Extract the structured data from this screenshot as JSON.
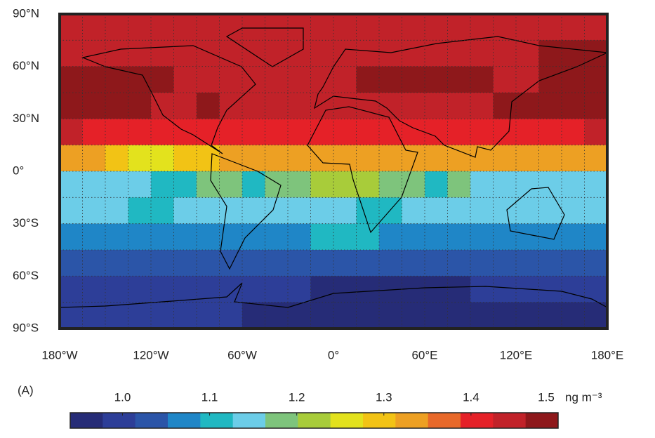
{
  "chart_data": {
    "type": "map",
    "panel_label": "(A)",
    "xlim": [
      -180,
      180
    ],
    "ylim": [
      -90,
      90
    ],
    "xticks": [
      {
        "value": -180,
        "label": "180°W"
      },
      {
        "value": -120,
        "label": "120°W"
      },
      {
        "value": -60,
        "label": "60°W"
      },
      {
        "value": 0,
        "label": "0°"
      },
      {
        "value": 60,
        "label": "60°E"
      },
      {
        "value": 120,
        "label": "120°E"
      },
      {
        "value": 180,
        "label": "180°E"
      }
    ],
    "yticks": [
      {
        "value": 90,
        "label": "90°N"
      },
      {
        "value": 60,
        "label": "60°N"
      },
      {
        "value": 30,
        "label": "30°N"
      },
      {
        "value": 0,
        "label": "0°"
      },
      {
        "value": -30,
        "label": "30°S"
      },
      {
        "value": -60,
        "label": "60°S"
      },
      {
        "value": -90,
        "label": "90°S"
      }
    ],
    "values": [
      [
        1.45,
        1.45,
        1.45,
        1.45,
        1.45,
        1.45,
        1.45,
        1.45,
        1.45,
        1.45,
        1.45,
        1.45,
        1.45,
        1.45,
        1.45,
        1.45,
        1.45,
        1.45,
        1.45,
        1.45,
        1.45,
        1.45,
        1.45,
        1.45
      ],
      [
        1.45,
        1.45,
        1.45,
        1.45,
        1.45,
        1.45,
        1.45,
        1.45,
        1.45,
        1.45,
        1.45,
        1.45,
        1.45,
        1.45,
        1.45,
        1.45,
        1.45,
        1.45,
        1.45,
        1.45,
        1.45,
        1.48,
        1.48,
        1.48
      ],
      [
        1.48,
        1.48,
        1.48,
        1.48,
        1.48,
        1.45,
        1.45,
        1.45,
        1.45,
        1.45,
        1.45,
        1.45,
        1.45,
        1.48,
        1.48,
        1.48,
        1.48,
        1.48,
        1.48,
        1.45,
        1.45,
        1.48,
        1.48,
        1.48
      ],
      [
        1.48,
        1.48,
        1.48,
        1.48,
        1.45,
        1.45,
        1.48,
        1.45,
        1.45,
        1.45,
        1.45,
        1.45,
        1.45,
        1.45,
        1.45,
        1.45,
        1.45,
        1.45,
        1.45,
        1.48,
        1.48,
        1.48,
        1.48,
        1.48
      ],
      [
        1.45,
        1.41,
        1.41,
        1.41,
        1.41,
        1.41,
        1.41,
        1.41,
        1.41,
        1.41,
        1.41,
        1.41,
        1.41,
        1.41,
        1.41,
        1.41,
        1.41,
        1.41,
        1.41,
        1.41,
        1.41,
        1.41,
        1.41,
        1.45
      ],
      [
        1.34,
        1.34,
        1.3,
        1.27,
        1.27,
        1.3,
        1.3,
        1.34,
        1.34,
        1.34,
        1.34,
        1.34,
        1.34,
        1.34,
        1.34,
        1.34,
        1.34,
        1.34,
        1.34,
        1.34,
        1.34,
        1.34,
        1.34,
        1.34
      ],
      [
        1.15,
        1.15,
        1.15,
        1.15,
        1.11,
        1.11,
        1.19,
        1.19,
        1.11,
        1.19,
        1.19,
        1.22,
        1.22,
        1.22,
        1.19,
        1.19,
        1.11,
        1.19,
        1.15,
        1.15,
        1.15,
        1.15,
        1.15,
        1.15
      ],
      [
        1.15,
        1.15,
        1.15,
        1.11,
        1.11,
        1.15,
        1.15,
        1.15,
        1.15,
        1.15,
        1.15,
        1.15,
        1.15,
        1.11,
        1.11,
        1.15,
        1.15,
        1.15,
        1.15,
        1.15,
        1.15,
        1.15,
        1.15,
        1.15
      ],
      [
        1.08,
        1.08,
        1.08,
        1.08,
        1.08,
        1.08,
        1.08,
        1.08,
        1.08,
        1.08,
        1.08,
        1.11,
        1.11,
        1.11,
        1.08,
        1.08,
        1.08,
        1.08,
        1.08,
        1.08,
        1.08,
        1.08,
        1.08,
        1.08
      ],
      [
        1.03,
        1.03,
        1.03,
        1.03,
        1.03,
        1.03,
        1.03,
        1.03,
        1.03,
        1.03,
        1.03,
        1.03,
        1.03,
        1.03,
        1.03,
        1.03,
        1.03,
        1.03,
        1.03,
        1.03,
        1.03,
        1.03,
        1.03,
        1.03
      ],
      [
        1.0,
        1.0,
        1.0,
        1.0,
        1.0,
        1.0,
        1.0,
        1.0,
        1.0,
        1.0,
        1.0,
        0.96,
        0.96,
        0.96,
        0.96,
        0.96,
        0.96,
        0.96,
        1.0,
        1.0,
        1.0,
        1.0,
        1.0,
        1.0
      ],
      [
        1.0,
        1.0,
        1.0,
        1.0,
        1.0,
        1.0,
        1.0,
        1.0,
        0.96,
        0.96,
        0.96,
        0.96,
        0.96,
        0.96,
        0.96,
        0.96,
        0.96,
        0.96,
        0.96,
        0.96,
        0.96,
        0.96,
        0.96,
        0.96
      ]
    ],
    "colormap": [
      "#262c77",
      "#2d3e98",
      "#2b55a8",
      "#1f86c7",
      "#20b8c2",
      "#6ccde8",
      "#7ec47c",
      "#a8cc3a",
      "#e3e21d",
      "#f2c315",
      "#eda023",
      "#e8692a",
      "#e52128",
      "#c12229",
      "#8e181b"
    ],
    "colorbar": {
      "clim": [
        0.94,
        1.5
      ],
      "ticks": [
        {
          "value": 1,
          "label": "1.0"
        },
        1.1,
        1.2,
        1.3,
        1.4,
        1.5
      ],
      "unit": "ng m⁻³"
    }
  }
}
